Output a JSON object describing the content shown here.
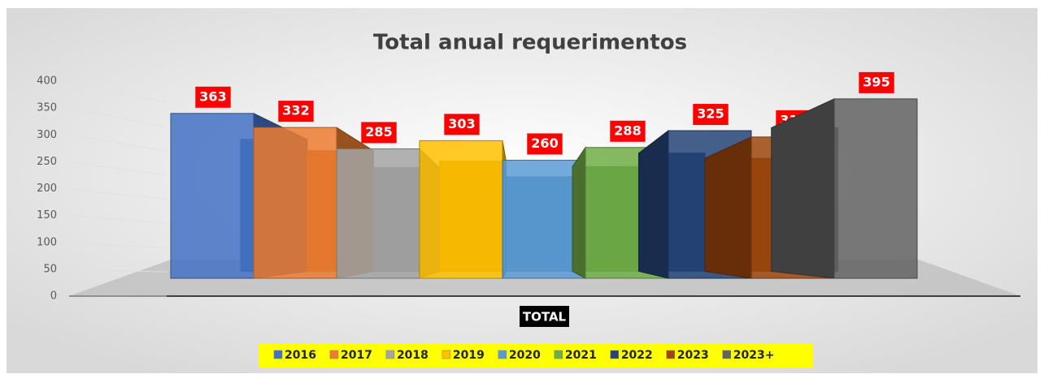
{
  "chart_data": {
    "type": "bar3d",
    "title": "Total anual requerimentos",
    "categories": [
      "TOTAL"
    ],
    "series": [
      {
        "name": "2016",
        "color": "#4472c4",
        "values": [
          363
        ]
      },
      {
        "name": "2017",
        "color": "#ed7d31",
        "values": [
          332
        ]
      },
      {
        "name": "2018",
        "color": "#a5a5a5",
        "values": [
          285
        ]
      },
      {
        "name": "2019",
        "color": "#ffc000",
        "values": [
          303
        ]
      },
      {
        "name": "2020",
        "color": "#5b9bd5",
        "values": [
          260
        ]
      },
      {
        "name": "2021",
        "color": "#70ad47",
        "values": [
          288
        ]
      },
      {
        "name": "2022",
        "color": "#264478",
        "values": [
          325
        ]
      },
      {
        "name": "2023",
        "color": "#9e480e",
        "values": [
          311
        ]
      },
      {
        "name": "2023+",
        "color": "#636363",
        "values": [
          395
        ]
      }
    ],
    "ylim": [
      0,
      400
    ],
    "yticks": [
      0,
      50,
      100,
      150,
      200,
      250,
      300,
      350,
      400
    ],
    "grid": true,
    "legend": "bottom"
  }
}
